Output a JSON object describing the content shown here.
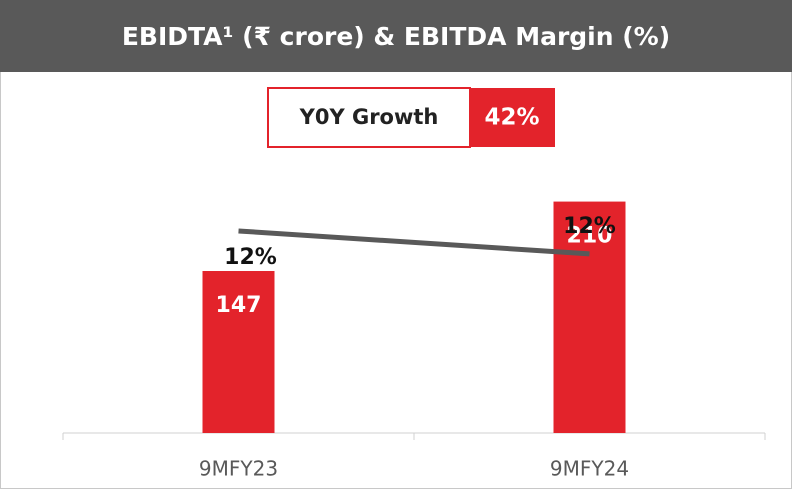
{
  "chart_data": {
    "type": "bar_line",
    "title": "EBIDTA¹ (₹ crore) & EBITDA Margin (%)",
    "growth_label": "Y0Y Growth",
    "growth_value": "42%",
    "categories": [
      "9MFY23",
      "9MFY24"
    ],
    "series": [
      {
        "name": "EBITDA",
        "color": "#e3232b",
        "values": [
          147,
          210
        ]
      },
      {
        "name": "EBITDA Margin",
        "color": "#595959",
        "axis": "y2",
        "values": [
          12.4,
          11.9
        ],
        "value_labels": [
          "12%",
          "12%"
        ]
      }
    ],
    "ylim": [
      0,
      250
    ],
    "y2lim": [
      8,
      14
    ]
  }
}
